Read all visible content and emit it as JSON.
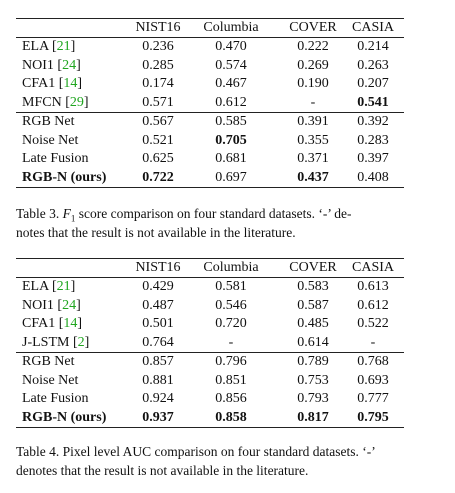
{
  "tables": [
    {
      "columns": [
        "NIST16",
        "Columbia",
        "COVER",
        "CASIA"
      ],
      "rows": [
        {
          "method": "ELA",
          "cite": [
            "[",
            "21",
            "]"
          ],
          "values": [
            "0.236",
            "0.470",
            "0.222",
            "0.214"
          ]
        },
        {
          "method": "NOI1",
          "cite": [
            "[",
            "24",
            "]"
          ],
          "values": [
            "0.285",
            "0.574",
            "0.269",
            "0.263"
          ]
        },
        {
          "method": "CFA1",
          "cite": [
            "[",
            "14",
            "]"
          ],
          "values": [
            "0.174",
            "0.467",
            "0.190",
            "0.207"
          ]
        },
        {
          "method": "MFCN",
          "cite": [
            "[",
            "29",
            "]"
          ],
          "values": [
            "0.571",
            "0.612",
            "-",
            "0.541"
          ]
        },
        {
          "method": "RGB Net",
          "values": [
            "0.567",
            "0.585",
            "0.391",
            "0.392"
          ]
        },
        {
          "method": "Noise Net",
          "values": [
            "0.521",
            "0.705",
            "0.355",
            "0.283"
          ]
        },
        {
          "method": "Late Fusion",
          "values": [
            "0.625",
            "0.681",
            "0.371",
            "0.397"
          ]
        },
        {
          "method": "RGB-N (ours)",
          "values": [
            "0.722",
            "0.697",
            "0.437",
            "0.408"
          ]
        }
      ],
      "caption": {
        "prefix": "Table 3. ",
        "symbol": "F",
        "subscript": "1",
        "line1": " score comparison on four standard datasets. ‘-’ de-",
        "line2": "notes that the result is not available in the literature."
      }
    },
    {
      "columns": [
        "NIST16",
        "Columbia",
        "COVER",
        "CASIA"
      ],
      "rows": [
        {
          "method": "ELA",
          "cite": [
            "[",
            "21",
            "]"
          ],
          "values": [
            "0.429",
            "0.581",
            "0.583",
            "0.613"
          ]
        },
        {
          "method": "NOI1",
          "cite": [
            "[",
            "24",
            "]"
          ],
          "values": [
            "0.487",
            "0.546",
            "0.587",
            "0.612"
          ]
        },
        {
          "method": "CFA1",
          "cite": [
            "[",
            "14",
            "]"
          ],
          "values": [
            "0.501",
            "0.720",
            "0.485",
            "0.522"
          ]
        },
        {
          "method": "J-LSTM",
          "cite": [
            "[",
            "2",
            "]"
          ],
          "values": [
            "0.764",
            "-",
            "0.614",
            "-"
          ]
        },
        {
          "method": "RGB Net",
          "values": [
            "0.857",
            "0.796",
            "0.789",
            "0.768"
          ]
        },
        {
          "method": "Noise Net",
          "values": [
            "0.881",
            "0.851",
            "0.753",
            "0.693"
          ]
        },
        {
          "method": "Late Fusion",
          "values": [
            "0.924",
            "0.856",
            "0.793",
            "0.777"
          ]
        },
        {
          "method": "RGB-N (ours)",
          "values": [
            "0.937",
            "0.858",
            "0.817",
            "0.795"
          ]
        }
      ],
      "caption": {
        "line1": "Table 4. Pixel level AUC comparison on four standard datasets. ‘-’",
        "line2": "denotes that the result is not available in the literature."
      }
    }
  ]
}
